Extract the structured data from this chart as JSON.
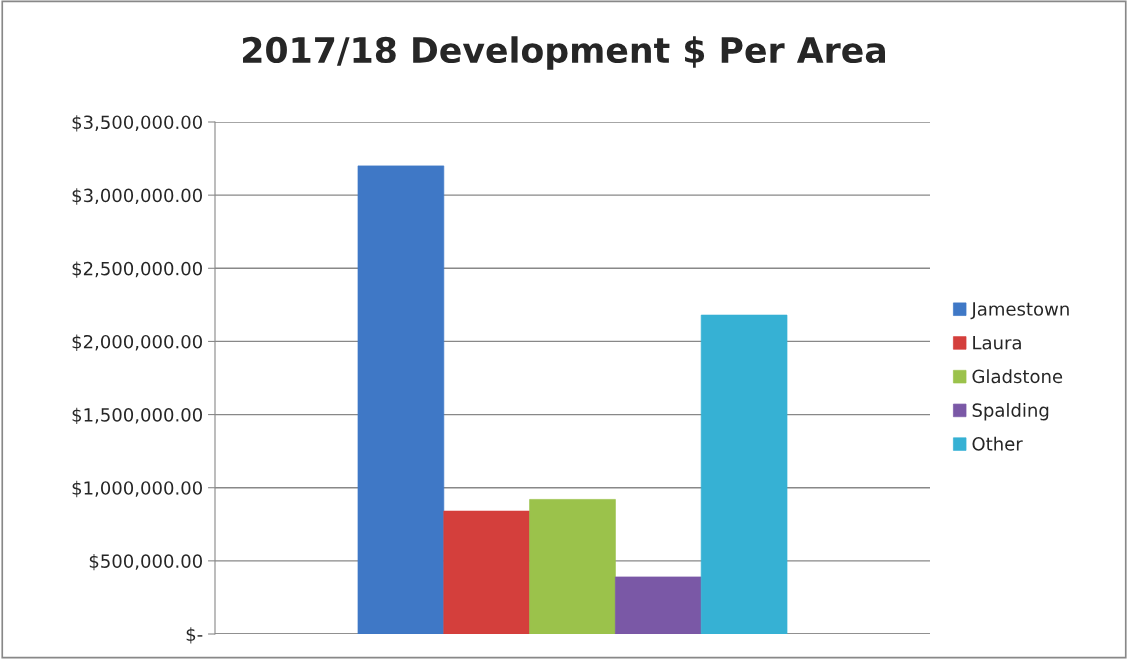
{
  "chart_data": {
    "type": "bar",
    "title": "2017/18 Development $ Per Area",
    "categories": [
      null
    ],
    "series": [
      {
        "name": "Jamestown",
        "color": "#3f78c6",
        "values": [
          3200000
        ]
      },
      {
        "name": "Laura",
        "color": "#d43f3c",
        "values": [
          840000
        ]
      },
      {
        "name": "Gladstone",
        "color": "#9bc24b",
        "values": [
          920000
        ]
      },
      {
        "name": "Spalding",
        "color": "#7a58a6",
        "values": [
          390000
        ]
      },
      {
        "name": "Other",
        "color": "#36b1d4",
        "values": [
          2180000
        ]
      }
    ],
    "ylim": [
      0,
      3500000
    ],
    "yticks": [
      {
        "value": 0,
        "label": "$-"
      },
      {
        "value": 500000,
        "label": "$500,000.00"
      },
      {
        "value": 1000000,
        "label": "$1,000,000.00"
      },
      {
        "value": 1500000,
        "label": "$1,500,000.00"
      },
      {
        "value": 2000000,
        "label": "$2,000,000.00"
      },
      {
        "value": 2500000,
        "label": "$2,500,000.00"
      },
      {
        "value": 3000000,
        "label": "$3,000,000.00"
      },
      {
        "value": 3500000,
        "label": "$3,500,000.00"
      }
    ],
    "grid": "y",
    "legend": "right"
  }
}
